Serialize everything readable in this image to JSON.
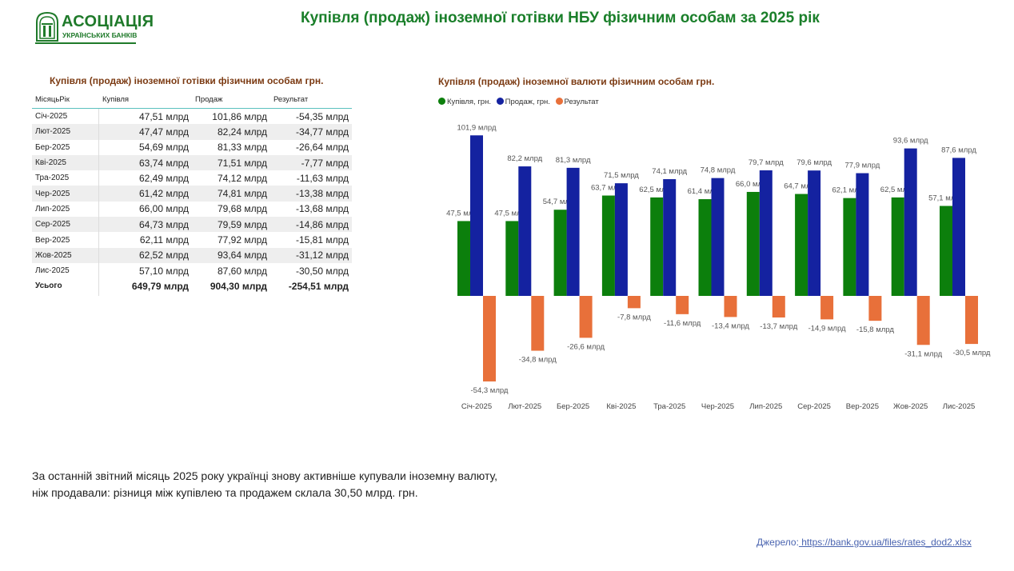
{
  "logo": {
    "title": "АСОЦІАЦІЯ",
    "subtitle": "УКРАЇНСЬКИХ БАНКІВ"
  },
  "page_title": "Купівля (продаж) іноземної готівки НБУ фізичним особам за 2025 рік",
  "table": {
    "title": "Купівля (продаж) іноземної готівки фізичним особам грн.",
    "headers": [
      "МісяцьРік",
      "Купівля",
      "Продаж",
      "Результат"
    ],
    "rows": [
      [
        "Січ-2025",
        "47,51 млрд",
        "101,86 млрд",
        "-54,35 млрд"
      ],
      [
        "Лют-2025",
        "47,47 млрд",
        "82,24 млрд",
        "-34,77 млрд"
      ],
      [
        "Бер-2025",
        "54,69 млрд",
        "81,33 млрд",
        "-26,64 млрд"
      ],
      [
        "Кві-2025",
        "63,74 млрд",
        "71,51 млрд",
        "-7,77 млрд"
      ],
      [
        "Тра-2025",
        "62,49 млрд",
        "74,12 млрд",
        "-11,63 млрд"
      ],
      [
        "Чер-2025",
        "61,42 млрд",
        "74,81 млрд",
        "-13,38 млрд"
      ],
      [
        "Лип-2025",
        "66,00 млрд",
        "79,68 млрд",
        "-13,68 млрд"
      ],
      [
        "Сер-2025",
        "64,73 млрд",
        "79,59 млрд",
        "-14,86 млрд"
      ],
      [
        "Вер-2025",
        "62,11 млрд",
        "77,92 млрд",
        "-15,81 млрд"
      ],
      [
        "Жов-2025",
        "62,52 млрд",
        "93,64 млрд",
        "-31,12 млрд"
      ],
      [
        "Лис-2025",
        "57,10 млрд",
        "87,60 млрд",
        "-30,50 млрд"
      ]
    ],
    "total": [
      "Усього",
      "649,79 млрд",
      "904,30 млрд",
      "-254,51 млрд"
    ]
  },
  "chart_data": {
    "type": "bar",
    "title": "Купівля (продаж) іноземної валюти фізичним особам грн.",
    "legend_position": "top-left",
    "categories": [
      "Січ-2025",
      "Лют-2025",
      "Бер-2025",
      "Кві-2025",
      "Тра-2025",
      "Чер-2025",
      "Лип-2025",
      "Сер-2025",
      "Вер-2025",
      "Жов-2025",
      "Лис-2025"
    ],
    "series": [
      {
        "name": "Купівля, грн.",
        "color": "#0c7f0c",
        "values": [
          47.5,
          47.5,
          54.7,
          63.7,
          62.5,
          61.4,
          66.0,
          64.7,
          62.1,
          62.5,
          57.1
        ],
        "labels": [
          "47,5 млрд",
          "47,5 млрд",
          "54,7 млрд",
          "63,7 млрд",
          "62,5 млрд",
          "61,4 млрд",
          "66,0 млрд",
          "64,7 млрд",
          "62,1 млрд",
          "62,5 млрд",
          "57,1 млрд"
        ]
      },
      {
        "name": "Продаж, грн.",
        "color": "#1422a0",
        "values": [
          101.9,
          82.2,
          81.3,
          71.5,
          74.1,
          74.8,
          79.7,
          79.6,
          77.9,
          93.6,
          87.6
        ],
        "labels": [
          "101,9 млрд",
          "82,2 млрд",
          "81,3 млрд",
          "71,5 млрд",
          "74,1 млрд",
          "74,8 млрд",
          "79,7 млрд",
          "79,6 млрд",
          "77,9 млрд",
          "93,6 млрд",
          "87,6 млрд"
        ]
      },
      {
        "name": "Результат",
        "color": "#e8703a",
        "values": [
          -54.3,
          -34.8,
          -26.6,
          -7.8,
          -11.6,
          -13.4,
          -13.7,
          -14.9,
          -15.8,
          -31.1,
          -30.5
        ],
        "labels": [
          "-54,3 млрд",
          "-34,8 млрд",
          "-26,6 млрд",
          "-7,8 млрд",
          "-11,6 млрд",
          "-13,4 млрд",
          "-13,7 млрд",
          "-14,9 млрд",
          "-15,8 млрд",
          "-31,1 млрд",
          "-30,5 млрд"
        ]
      }
    ],
    "grid": false
  },
  "summary": {
    "line1": "За останній звітний місяць   2025 року українці знову активніше купували іноземну валюту,",
    "line2": "ніж продавали: різниця між купівлею та продажем склала 30,50 млрд. грн."
  },
  "source": {
    "label": "Джерело:",
    "url": " https://bank.gov.ua/files/rates_dod2.xlsx"
  }
}
